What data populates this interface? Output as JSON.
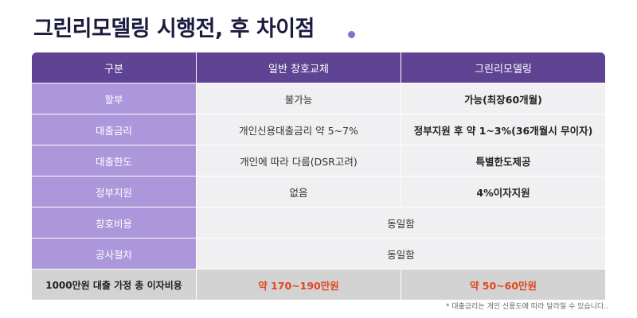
{
  "title": "그린리모델링 시행전, 후 차이점",
  "colors": {
    "header_bg": "#5e4492",
    "label_bg": "#ab97da",
    "cell_bg": "#f0eff1",
    "footer_bg": "#d3d3d3",
    "highlight": "#e0461e"
  },
  "table": {
    "headers": [
      "구분",
      "일반 창호교체",
      "그린리모델링"
    ],
    "rows": [
      {
        "label": "할부",
        "general": "불가능",
        "green": "가능(최장60개월)"
      },
      {
        "label": "대출금리",
        "general": "개인신용대출금리 약 5~7%",
        "green": "정부지원 후 약 1~3%(36개월시 무이자)"
      },
      {
        "label": "대출한도",
        "general": "개인에 따라 다름(DSR고려)",
        "green": "특별한도제공"
      },
      {
        "label": "정부지원",
        "general": "없음",
        "green": "4%이자지원"
      },
      {
        "label": "창호비용",
        "merged": "동일함"
      },
      {
        "label": "공사절차",
        "merged": "동일함"
      }
    ],
    "footer": {
      "label": "1000만원 대출 가정 총 이자비용",
      "general": "약 170~190만원",
      "green": "약 50~60만원"
    }
  },
  "note": "* 대출금리는 개인 신용도에 따라 달라질 수 있습니다.."
}
